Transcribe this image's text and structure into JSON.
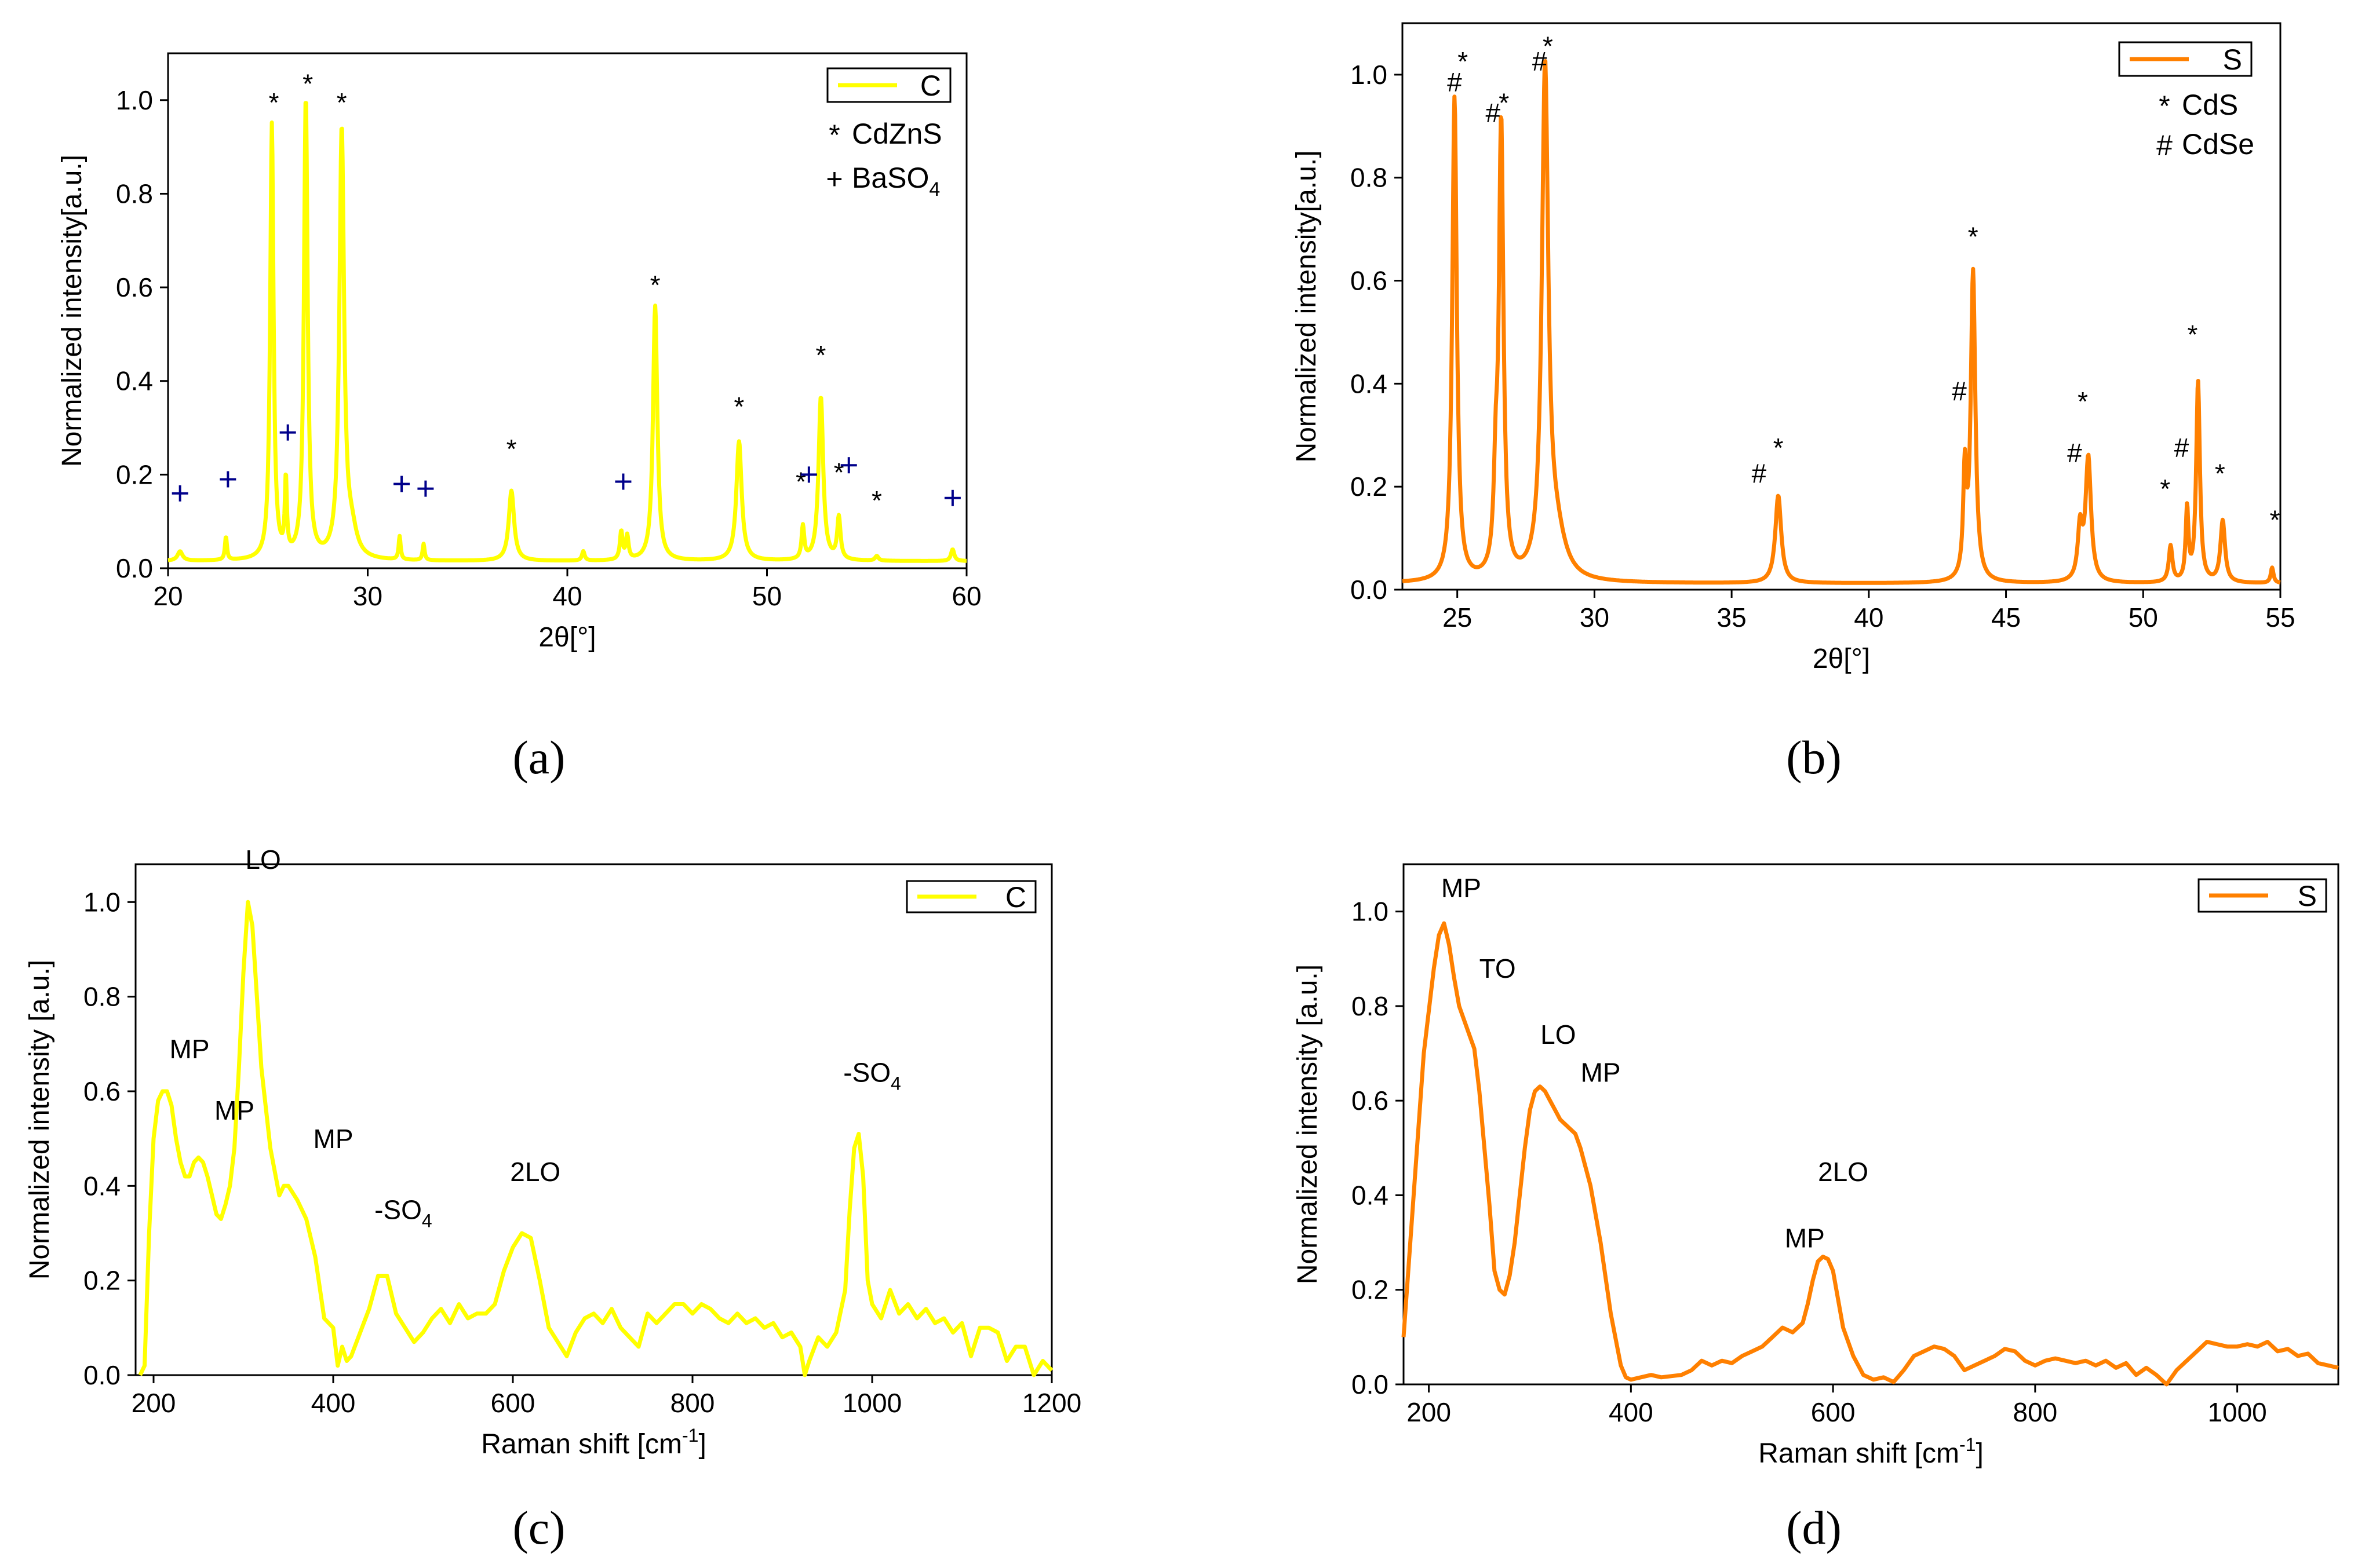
{
  "figure": {
    "panels": [
      {
        "caption": "(a)"
      },
      {
        "caption": "(b)"
      },
      {
        "caption": "(c)"
      },
      {
        "caption": "(d)"
      }
    ]
  },
  "chart_data": [
    {
      "id": "a",
      "type": "line",
      "color": "#ffff00",
      "xlabel": "2θ[°]",
      "ylabel": "Normalized intensity[a.u.]",
      "xlim": [
        20,
        60
      ],
      "ylim": [
        0,
        1.1
      ],
      "xticks": [
        20,
        30,
        40,
        50,
        60
      ],
      "yticks": [
        0.0,
        0.2,
        0.4,
        0.6,
        0.8,
        1.0
      ],
      "xtick_labels": [
        "20",
        "30",
        "40",
        "50",
        "60"
      ],
      "ytick_labels": [
        "0.0",
        "0.2",
        "0.4",
        "0.6",
        "0.8",
        "1.0"
      ],
      "series": [
        {
          "name": "C",
          "baseline": 0.015,
          "peaks": [
            [
              20.6,
              0.02,
              0.15
            ],
            [
              22.9,
              0.05,
              0.06
            ],
            [
              25.2,
              0.93,
              0.1
            ],
            [
              25.9,
              0.16,
              0.06
            ],
            [
              26.9,
              0.985,
              0.11
            ],
            [
              28.7,
              0.915,
              0.14
            ],
            [
              29.2,
              0.05,
              0.3
            ],
            [
              31.6,
              0.05,
              0.06
            ],
            [
              32.8,
              0.035,
              0.06
            ],
            [
              37.2,
              0.15,
              0.16
            ],
            [
              40.8,
              0.02,
              0.08
            ],
            [
              42.7,
              0.06,
              0.08
            ],
            [
              43.0,
              0.05,
              0.08
            ],
            [
              44.4,
              0.545,
              0.13
            ],
            [
              48.6,
              0.255,
              0.16
            ],
            [
              51.8,
              0.07,
              0.08
            ],
            [
              52.7,
              0.35,
              0.14
            ],
            [
              53.6,
              0.09,
              0.1
            ],
            [
              55.5,
              0.01,
              0.1
            ],
            [
              59.3,
              0.025,
              0.1
            ]
          ]
        }
      ],
      "legend": {
        "position": "top-right",
        "entries": [
          "C"
        ]
      },
      "annotations": [
        {
          "text": "*",
          "x": 25.3,
          "y": 1.0
        },
        {
          "text": "*",
          "x": 27.0,
          "y": 1.04
        },
        {
          "text": "*",
          "x": 28.7,
          "y": 1.0
        },
        {
          "text": "*",
          "x": 44.4,
          "y": 0.61
        },
        {
          "text": "*",
          "x": 37.2,
          "y": 0.26
        },
        {
          "text": "*",
          "x": 48.6,
          "y": 0.35
        },
        {
          "text": "*",
          "x": 52.7,
          "y": 0.46
        },
        {
          "text": "*",
          "x": 51.7,
          "y": 0.19
        },
        {
          "text": "*",
          "x": 53.6,
          "y": 0.21
        },
        {
          "text": "*",
          "x": 55.5,
          "y": 0.15
        }
      ],
      "markers": {
        "symbol": "+",
        "color": "#00008b",
        "points": [
          [
            20.6,
            0.16
          ],
          [
            23.0,
            0.19
          ],
          [
            26.0,
            0.29
          ],
          [
            31.7,
            0.18
          ],
          [
            32.9,
            0.17
          ],
          [
            42.8,
            0.185
          ],
          [
            52.1,
            0.2
          ],
          [
            54.1,
            0.22
          ],
          [
            59.3,
            0.15
          ]
        ]
      },
      "key": [
        {
          "symbol": "*",
          "label": "CdZnS",
          "color": "#000000"
        },
        {
          "symbol": "+",
          "label": "BaSO",
          "sub": "4",
          "color": "#00008b"
        }
      ]
    },
    {
      "id": "b",
      "type": "line",
      "color": "#ff8000",
      "xlabel": "2θ[°]",
      "ylabel": "Normalized intensity[a.u.]",
      "xlim": [
        23,
        55
      ],
      "ylim": [
        0,
        1.1
      ],
      "xticks": [
        25,
        30,
        35,
        40,
        45,
        50,
        55
      ],
      "yticks": [
        0.0,
        0.2,
        0.4,
        0.6,
        0.8,
        1.0
      ],
      "xtick_labels": [
        "25",
        "30",
        "35",
        "40",
        "45",
        "50",
        "55"
      ],
      "ytick_labels": [
        "0.0",
        "0.2",
        "0.4",
        "0.6",
        "0.8",
        "1.0"
      ],
      "series": [
        {
          "name": "S",
          "baseline": 0.012,
          "peaks": [
            [
              24.9,
              0.94,
              0.1
            ],
            [
              26.6,
              0.88,
              0.1
            ],
            [
              26.4,
              0.15,
              0.08
            ],
            [
              28.2,
              0.975,
              0.14
            ],
            [
              28.6,
              0.08,
              0.4
            ],
            [
              36.7,
              0.17,
              0.13
            ],
            [
              43.5,
              0.2,
              0.07
            ],
            [
              43.8,
              0.6,
              0.1
            ],
            [
              47.7,
              0.1,
              0.1
            ],
            [
              48.0,
              0.24,
              0.12
            ],
            [
              51.0,
              0.07,
              0.08
            ],
            [
              51.6,
              0.14,
              0.06
            ],
            [
              52.0,
              0.39,
              0.08
            ],
            [
              52.9,
              0.12,
              0.1
            ],
            [
              54.7,
              0.03,
              0.06
            ]
          ]
        }
      ],
      "legend": {
        "position": "top-right",
        "entries": [
          "S"
        ]
      },
      "annotations": [
        {
          "text": "#",
          "x": 24.9,
          "y": 0.99
        },
        {
          "text": "*",
          "x": 25.2,
          "y": 1.03
        },
        {
          "text": "#",
          "x": 26.3,
          "y": 0.93
        },
        {
          "text": "*",
          "x": 26.7,
          "y": 0.95
        },
        {
          "text": "#",
          "x": 28.0,
          "y": 1.03
        },
        {
          "text": "*",
          "x": 28.3,
          "y": 1.06
        },
        {
          "text": "#",
          "x": 36.0,
          "y": 0.23
        },
        {
          "text": "*",
          "x": 36.7,
          "y": 0.28
        },
        {
          "text": "#",
          "x": 43.3,
          "y": 0.39
        },
        {
          "text": "*",
          "x": 43.8,
          "y": 0.69
        },
        {
          "text": "#",
          "x": 47.5,
          "y": 0.27
        },
        {
          "text": "*",
          "x": 47.8,
          "y": 0.37
        },
        {
          "text": "*",
          "x": 50.8,
          "y": 0.2
        },
        {
          "text": "#",
          "x": 51.4,
          "y": 0.28
        },
        {
          "text": "*",
          "x": 51.8,
          "y": 0.5
        },
        {
          "text": "*",
          "x": 52.8,
          "y": 0.23
        },
        {
          "text": "*",
          "x": 54.8,
          "y": 0.14
        }
      ],
      "key": [
        {
          "symbol": "*",
          "label": "CdS",
          "color": "#000000"
        },
        {
          "symbol": "#",
          "label": "CdSe",
          "color": "#000000"
        }
      ]
    },
    {
      "id": "c",
      "type": "line",
      "color": "#ffff00",
      "xlabel": "Raman shift [cm",
      "xlabel_sup": "-1",
      "xlabel_end": "]",
      "ylabel": "Normalized intensity [a.u.]",
      "xlim": [
        180,
        1200
      ],
      "ylim": [
        0,
        1.08
      ],
      "xticks": [
        200,
        400,
        600,
        800,
        1000,
        1200
      ],
      "yticks": [
        0.0,
        0.2,
        0.4,
        0.6,
        0.8,
        1.0
      ],
      "xtick_labels": [
        "200",
        "400",
        "600",
        "800",
        "1000",
        "1200"
      ],
      "ytick_labels": [
        "0.0",
        "0.2",
        "0.4",
        "0.6",
        "0.8",
        "1.0"
      ],
      "series": [
        {
          "name": "C",
          "x": [
            185,
            190,
            195,
            200,
            205,
            210,
            215,
            220,
            225,
            230,
            235,
            240,
            245,
            250,
            255,
            260,
            265,
            270,
            275,
            280,
            285,
            290,
            295,
            300,
            305,
            310,
            315,
            320,
            330,
            340,
            345,
            350,
            360,
            370,
            380,
            390,
            400,
            405,
            410,
            415,
            420,
            430,
            440,
            450,
            460,
            470,
            480,
            490,
            500,
            510,
            520,
            530,
            540,
            550,
            560,
            570,
            580,
            590,
            600,
            610,
            620,
            630,
            640,
            650,
            660,
            670,
            680,
            690,
            700,
            710,
            720,
            730,
            740,
            750,
            760,
            770,
            780,
            790,
            800,
            810,
            820,
            830,
            840,
            850,
            860,
            870,
            880,
            890,
            900,
            910,
            920,
            925,
            930,
            940,
            950,
            960,
            970,
            975,
            980,
            985,
            990,
            995,
            1000,
            1010,
            1020,
            1030,
            1040,
            1050,
            1060,
            1070,
            1080,
            1090,
            1100,
            1110,
            1120,
            1130,
            1140,
            1150,
            1160,
            1170,
            1180,
            1190,
            1200
          ],
          "y": [
            0.0,
            0.02,
            0.3,
            0.5,
            0.58,
            0.6,
            0.6,
            0.57,
            0.5,
            0.45,
            0.42,
            0.42,
            0.45,
            0.46,
            0.45,
            0.42,
            0.38,
            0.34,
            0.33,
            0.36,
            0.4,
            0.48,
            0.65,
            0.85,
            1.0,
            0.95,
            0.8,
            0.65,
            0.48,
            0.38,
            0.4,
            0.4,
            0.37,
            0.33,
            0.25,
            0.12,
            0.1,
            0.02,
            0.06,
            0.03,
            0.04,
            0.09,
            0.14,
            0.21,
            0.21,
            0.13,
            0.1,
            0.07,
            0.09,
            0.12,
            0.14,
            0.11,
            0.15,
            0.12,
            0.13,
            0.13,
            0.15,
            0.22,
            0.27,
            0.3,
            0.29,
            0.2,
            0.1,
            0.07,
            0.04,
            0.09,
            0.12,
            0.13,
            0.11,
            0.14,
            0.1,
            0.08,
            0.06,
            0.13,
            0.11,
            0.13,
            0.15,
            0.15,
            0.13,
            0.15,
            0.14,
            0.12,
            0.11,
            0.13,
            0.11,
            0.12,
            0.1,
            0.11,
            0.08,
            0.09,
            0.06,
            0.0,
            0.03,
            0.08,
            0.06,
            0.09,
            0.18,
            0.35,
            0.48,
            0.51,
            0.42,
            0.2,
            0.15,
            0.12,
            0.18,
            0.13,
            0.15,
            0.12,
            0.14,
            0.11,
            0.12,
            0.09,
            0.11,
            0.04,
            0.1,
            0.1,
            0.09,
            0.03,
            0.06,
            0.06,
            0.0,
            0.03,
            0.01
          ]
        }
      ],
      "legend": {
        "position": "top-right",
        "entries": [
          "C"
        ]
      },
      "annotations": [
        {
          "text": "MP",
          "x": 240,
          "y": 0.67
        },
        {
          "text": "MP",
          "x": 290,
          "y": 0.54
        },
        {
          "text": "LO",
          "x": 322,
          "y": 1.07
        },
        {
          "text": "MP",
          "x": 400,
          "y": 0.48
        },
        {
          "text": "-SO",
          "sub": "4",
          "x": 478,
          "y": 0.33
        },
        {
          "text": "2LO",
          "x": 625,
          "y": 0.41
        },
        {
          "text": "-SO",
          "sub": "4",
          "x": 1000,
          "y": 0.62
        }
      ]
    },
    {
      "id": "d",
      "type": "line",
      "color": "#ff8000",
      "xlabel": "Raman shift [cm",
      "xlabel_sup": "-1",
      "xlabel_end": "]",
      "ylabel": "Normalized intensity [a.u.]",
      "xlim": [
        175,
        1100
      ],
      "ylim": [
        0,
        1.1
      ],
      "xticks": [
        200,
        400,
        600,
        800,
        1000
      ],
      "yticks": [
        0.0,
        0.2,
        0.4,
        0.6,
        0.8,
        1.0
      ],
      "xtick_labels": [
        "200",
        "400",
        "600",
        "800",
        "1000"
      ],
      "ytick_labels": [
        "0.0",
        "0.2",
        "0.4",
        "0.6",
        "0.8",
        "1.0"
      ],
      "series": [
        {
          "name": "S",
          "x": [
            175,
            185,
            195,
            205,
            210,
            215,
            220,
            225,
            230,
            240,
            245,
            250,
            255,
            260,
            265,
            270,
            275,
            280,
            285,
            290,
            295,
            300,
            305,
            310,
            315,
            320,
            325,
            330,
            340,
            345,
            350,
            360,
            370,
            380,
            390,
            395,
            400,
            420,
            430,
            450,
            460,
            470,
            480,
            490,
            500,
            510,
            520,
            530,
            540,
            550,
            560,
            570,
            575,
            580,
            585,
            590,
            595,
            600,
            605,
            610,
            620,
            630,
            640,
            650,
            660,
            670,
            680,
            690,
            700,
            710,
            720,
            730,
            740,
            750,
            760,
            770,
            780,
            790,
            800,
            810,
            820,
            830,
            840,
            850,
            860,
            870,
            880,
            890,
            900,
            910,
            920,
            930,
            940,
            950,
            960,
            970,
            980,
            990,
            1000,
            1010,
            1020,
            1030,
            1040,
            1050,
            1060,
            1070,
            1080,
            1090,
            1100
          ],
          "y": [
            0.1,
            0.4,
            0.7,
            0.88,
            0.95,
            0.975,
            0.93,
            0.86,
            0.8,
            0.74,
            0.71,
            0.62,
            0.5,
            0.38,
            0.24,
            0.2,
            0.19,
            0.23,
            0.3,
            0.4,
            0.5,
            0.58,
            0.62,
            0.63,
            0.62,
            0.6,
            0.58,
            0.56,
            0.54,
            0.53,
            0.5,
            0.42,
            0.3,
            0.15,
            0.04,
            0.015,
            0.01,
            0.02,
            0.015,
            0.02,
            0.03,
            0.05,
            0.04,
            0.05,
            0.045,
            0.06,
            0.07,
            0.08,
            0.1,
            0.12,
            0.11,
            0.13,
            0.17,
            0.22,
            0.26,
            0.27,
            0.265,
            0.24,
            0.18,
            0.12,
            0.06,
            0.02,
            0.01,
            0.015,
            0.005,
            0.03,
            0.06,
            0.07,
            0.08,
            0.075,
            0.06,
            0.03,
            0.04,
            0.05,
            0.06,
            0.075,
            0.07,
            0.05,
            0.04,
            0.05,
            0.055,
            0.05,
            0.045,
            0.05,
            0.04,
            0.05,
            0.035,
            0.045,
            0.02,
            0.035,
            0.02,
            0.0,
            0.03,
            0.05,
            0.07,
            0.09,
            0.085,
            0.08,
            0.08,
            0.085,
            0.08,
            0.09,
            0.07,
            0.075,
            0.06,
            0.065,
            0.045,
            0.04,
            0.035
          ]
        }
      ],
      "legend": {
        "position": "top-right",
        "entries": [
          "S"
        ]
      },
      "annotations": [
        {
          "text": "MP",
          "x": 232,
          "y": 1.03
        },
        {
          "text": "TO",
          "x": 268,
          "y": 0.86
        },
        {
          "text": "LO",
          "x": 328,
          "y": 0.72
        },
        {
          "text": "MP",
          "x": 370,
          "y": 0.64
        },
        {
          "text": "2LO",
          "x": 610,
          "y": 0.43
        },
        {
          "text": "MP",
          "x": 572,
          "y": 0.29
        }
      ]
    }
  ]
}
